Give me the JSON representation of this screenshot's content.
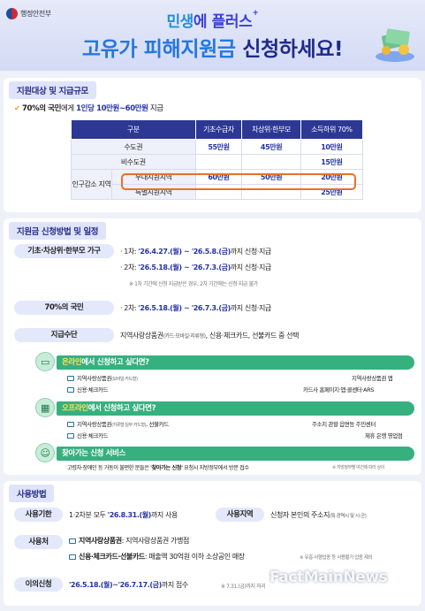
{
  "header": {
    "agency": "행정안전부",
    "subtitle_a": "민생",
    "subtitle_b": "에 플러스",
    "title_a": "고유가 피해지원금",
    "title_b": " 신청하세요!"
  },
  "s1": {
    "heading": "지원대상 및 지급규모",
    "check": "✔",
    "intro_a": "70%의 국민",
    "intro_b": "에게 ",
    "intro_c": "1인당 10만원~60만원",
    "intro_d": " 지급",
    "table": {
      "headers": [
        "구분",
        "기초수급자",
        "차상위·한부모",
        "소득하위 70%"
      ],
      "r1": {
        "label": "수도권",
        "vals": [
          "55만원",
          "45만원",
          "10만원"
        ]
      },
      "r2": {
        "label": "비수도권",
        "vals": [
          "",
          "",
          "15만원"
        ]
      },
      "group_label": "인구감소 지역",
      "r3": {
        "label": "우대지원지역",
        "vals": [
          "60만원",
          "50만원",
          "20만원"
        ]
      },
      "r4": {
        "label": "특별지원지역",
        "vals": [
          "",
          "",
          "25만원"
        ]
      }
    }
  },
  "s2": {
    "heading": "지원금 신청방법 및 일정",
    "g1": "기초·차상위·한부모 가구",
    "r1_a": "· 1차: ",
    "r1_b": "'26.4.27.(월) ~ '26.5.8.(금)",
    "r1_c": "까지 신청·지급",
    "r2_a": "· 2차: ",
    "r2_b": "'26.5.18.(월) ~ '26.7.3.(금)",
    "r2_c": "까지 신청·지급",
    "note1": "※ 1차 기간에 신청 지급받은 경우, 2차 기간에는 신청·지급 불가",
    "g2": "70%의 국민",
    "r3_a": "· 2차: ",
    "r3_b": "'26.5.18.(월) ~ '26.7.3.(금)",
    "r3_c": "까지 신청·지급",
    "g3": "지급수단",
    "pay_a": "지역사랑상품권",
    "pay_b": "(카드·모바일·지류형)",
    "pay_c": ", 신용·체크카드, 선불카드 중 선택",
    "on_a": "온라인",
    "on_b": "에서 신청하고 싶다면?",
    "on1_l": "지역사랑상품권",
    "on1_s": "(모바일·카드형)",
    "on1_r": "지역사랑상품권 앱",
    "on2_l": "신용·체크카드",
    "on2_r": "카드사 홈페이지·앱·콜센터·ARS",
    "off_a": "오프라인",
    "off_b": "에서 신청하고 싶다면?",
    "off1_l": "지역사랑상품권",
    "off1_s": "(지류형·일부 카드형)",
    "off1_m": ", 선불카드",
    "off1_r": "주소지 관할 읍면동 주민센터",
    "off2_l": "신용·체크카드",
    "off2_r": "제휴 은행 영업점",
    "visit": "찾아가는 신청 서비스",
    "visit_a": "고령자·장애인 등 거동이 불편한 분들은 ",
    "visit_b": "'찾아가는 신청'",
    "visit_c": " 요청시 지방정부에서 방문 접수",
    "visit_note": "※ 지방정부별 여건에 따라 상이"
  },
  "s3": {
    "heading": "사용방법",
    "k1": "사용기한",
    "v1_a": "1·2차분 모두 ",
    "v1_b": "'26.8.31.(월)",
    "v1_c": "까지 사용",
    "k2": "사용지역",
    "v2_a": "신청자 본인의 주소지",
    "v2_b": "(특·광역시 및 시·군)",
    "k3": "사용처",
    "v3a_b": "지역사랑상품권",
    "v3a_c": ": 지역사랑상품권 가맹점",
    "v3b_b": "신용·체크카드·선불카드",
    "v3b_c": ": 매출액 30억원 이하 소상공인 매장",
    "v3b_n": "※ 유흥·사행업종 등 사용불가 업종 제외",
    "k4": "이의신청",
    "v4_b": "'26.5.18.(월)~'26.7.17.(금)",
    "v4_c": "까지 접수",
    "v4_n": "※ 7.31.(금)까지 처리"
  },
  "watermark": "FactMainNews"
}
